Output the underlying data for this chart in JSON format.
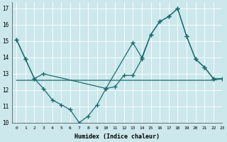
{
  "xlabel": "Humidex (Indice chaleur)",
  "bg_color": "#cce8ec",
  "line_color": "#1a6b6e",
  "grid_color": "#ffffff",
  "xlim": [
    -0.5,
    23
  ],
  "ylim": [
    10,
    17.4
  ],
  "yticks": [
    10,
    11,
    12,
    13,
    14,
    15,
    16,
    17
  ],
  "xticks": [
    0,
    1,
    2,
    3,
    4,
    5,
    6,
    7,
    8,
    9,
    10,
    11,
    12,
    13,
    14,
    15,
    16,
    17,
    18,
    19,
    20,
    21,
    22,
    23
  ],
  "series1_x": [
    0,
    1,
    2,
    3,
    4,
    5,
    6,
    7,
    8,
    9,
    10,
    11,
    12,
    13,
    14,
    15,
    16,
    17,
    18,
    19,
    20,
    21,
    22
  ],
  "series1_y": [
    15.1,
    13.9,
    12.7,
    12.1,
    11.4,
    11.1,
    10.8,
    10.0,
    10.4,
    11.1,
    12.1,
    12.2,
    12.9,
    12.9,
    13.9,
    15.4,
    16.2,
    16.5,
    17.0,
    15.3,
    13.9,
    13.4,
    12.7
  ],
  "series2_x": [
    0,
    1,
    2,
    3,
    4,
    5,
    6,
    7,
    8,
    9,
    10,
    11,
    12,
    13,
    14,
    15,
    16,
    17,
    18,
    19,
    20,
    21,
    22,
    23
  ],
  "series2_y": [
    12.6,
    12.6,
    12.6,
    12.6,
    12.6,
    12.6,
    12.6,
    12.6,
    12.6,
    12.6,
    12.6,
    12.6,
    12.6,
    12.6,
    12.6,
    12.6,
    12.6,
    12.6,
    12.6,
    12.6,
    12.6,
    12.6,
    12.6,
    12.7
  ],
  "series3_x": [
    0,
    1,
    2,
    3,
    10,
    13,
    14,
    15,
    16,
    17,
    18,
    19,
    20,
    21,
    22,
    23
  ],
  "series3_y": [
    15.1,
    13.9,
    12.7,
    13.0,
    12.1,
    14.9,
    14.0,
    15.4,
    16.2,
    16.5,
    17.0,
    15.3,
    13.9,
    13.4,
    12.7,
    12.7
  ]
}
